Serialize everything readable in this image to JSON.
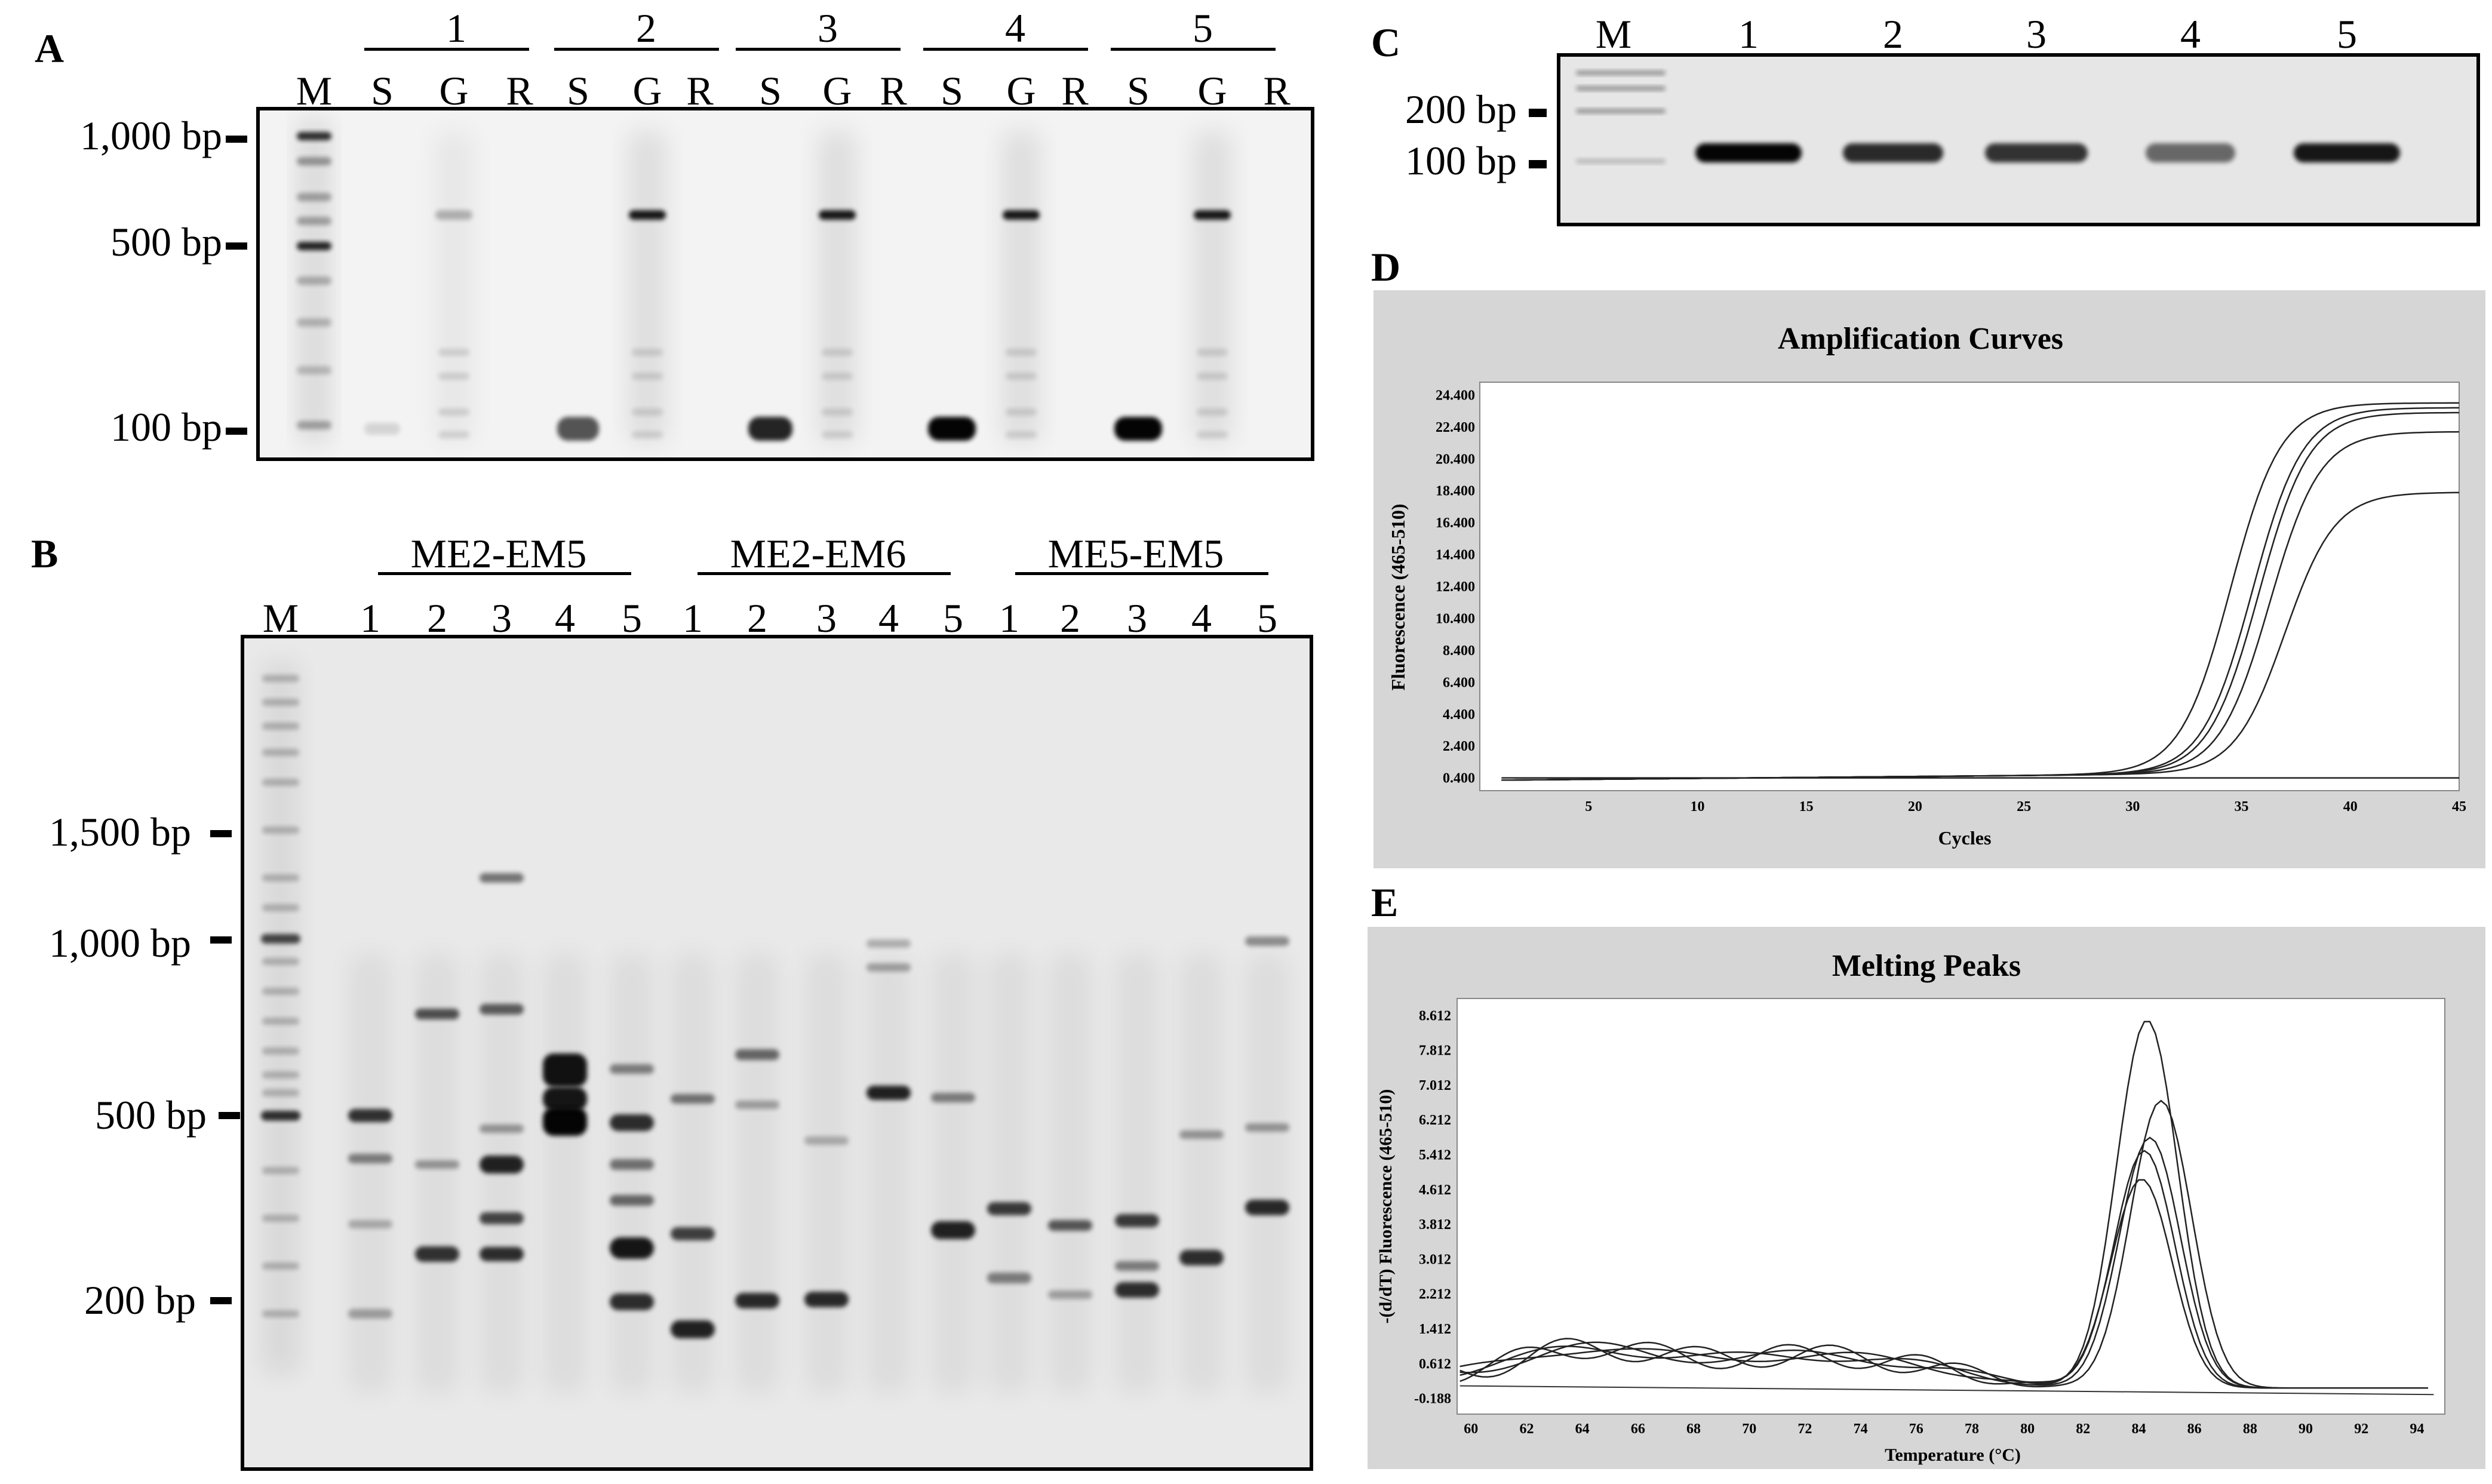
{
  "panel_a": {
    "letter": "A",
    "groups": [
      "1",
      "2",
      "3",
      "4",
      "5"
    ],
    "lane_codes": [
      "S",
      "G",
      "R"
    ],
    "marker": "M",
    "size_labels": [
      "1,000 bp",
      "500 bp",
      "100 bp"
    ]
  },
  "panel_b": {
    "letter": "B",
    "groups": [
      "ME2-EM5",
      "ME2-EM6",
      "ME5-EM5"
    ],
    "lanes": [
      "1",
      "2",
      "3",
      "4",
      "5"
    ],
    "marker": "M",
    "size_labels": [
      "1,500 bp",
      "1,000 bp",
      "500 bp",
      "200 bp"
    ]
  },
  "panel_c": {
    "letter": "C",
    "marker": "M",
    "lanes": [
      "1",
      "2",
      "3",
      "4",
      "5"
    ],
    "size_labels": [
      "200 bp",
      "100 bp"
    ]
  },
  "panel_d": {
    "letter": "D",
    "title": "Amplification Curves",
    "ylabel": "Fluorescence (465-510)",
    "xlabel": "Cycles",
    "yticks": [
      "24.400",
      "22.400",
      "20.400",
      "18.400",
      "16.400",
      "14.400",
      "12.400",
      "10.400",
      "8.400",
      "6.400",
      "4.400",
      "2.400",
      "0.400"
    ],
    "xticks": [
      "5",
      "10",
      "15",
      "20",
      "25",
      "30",
      "35",
      "40",
      "45"
    ]
  },
  "panel_e": {
    "letter": "E",
    "title": "Melting Peaks",
    "ylabel": "-(d/dT) Fluorescence (465-510)",
    "xlabel": "Temperature (°C)",
    "yticks": [
      "8.612",
      "7.812",
      "7.012",
      "6.212",
      "5.412",
      "4.612",
      "3.812",
      "3.012",
      "2.212",
      "1.412",
      "0.612",
      "-0.188"
    ],
    "xticks": [
      "60",
      "62",
      "64",
      "66",
      "68",
      "70",
      "72",
      "74",
      "76",
      "78",
      "80",
      "82",
      "84",
      "86",
      "88",
      "90",
      "92",
      "94"
    ]
  },
  "chart_data": [
    {
      "type": "line",
      "title": "Amplification Curves",
      "xlabel": "Cycles",
      "ylabel": "Fluorescence (465-510)",
      "xlim": [
        0,
        45
      ],
      "ylim": [
        -0.4,
        25.2
      ],
      "series": [
        {
          "midpoint": 34.5,
          "plateau": 23.9
        },
        {
          "midpoint": 35.5,
          "plateau": 23.6
        },
        {
          "midpoint": 35.8,
          "plateau": 23.3
        },
        {
          "midpoint": 36.3,
          "plateau": 22.1
        },
        {
          "midpoint": 37.0,
          "plateau": 18.3
        },
        {
          "midpoint": 0,
          "plateau": 0
        }
      ]
    },
    {
      "type": "line",
      "title": "Melting Peaks",
      "xlabel": "Temperature (°C)",
      "ylabel": "-(d/dT) Fluorescence (465-510)",
      "xlim": [
        59.5,
        95
      ],
      "ylim": [
        -0.55,
        9.0
      ],
      "series": [
        {
          "peak_temp": 84.3,
          "peak_height": 8.45
        },
        {
          "peak_temp": 84.8,
          "peak_height": 6.6
        },
        {
          "peak_temp": 84.4,
          "peak_height": 5.75
        },
        {
          "peak_temp": 84.2,
          "peak_height": 5.45
        },
        {
          "peak_temp": 84.1,
          "peak_height": 4.8
        }
      ]
    }
  ]
}
